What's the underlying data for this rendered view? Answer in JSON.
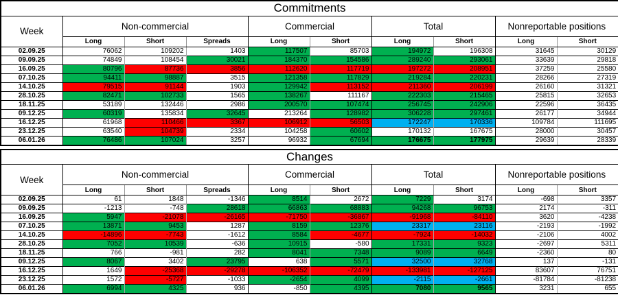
{
  "colors": {
    "gain_green": "#00b050",
    "loss_red": "#ff0000",
    "highlight_blue": "#00b0f0",
    "background": "#ffffff"
  },
  "chart_data": [
    {
      "type": "table",
      "title": "Commitments",
      "week_label": "Week",
      "groups": [
        {
          "label": "Non-commercial",
          "columns": [
            "Long",
            "Short",
            "Spreads"
          ]
        },
        {
          "label": "Commercial",
          "columns": [
            "Long",
            "Short"
          ]
        },
        {
          "label": "Total",
          "columns": [
            "Long",
            "Short"
          ]
        },
        {
          "label": "Nonreportable positions",
          "columns": [
            "Long",
            "Short"
          ]
        }
      ],
      "rows": [
        {
          "week": "02.09.25",
          "cells": [
            [
              "76062",
              "w"
            ],
            [
              "109202",
              "w"
            ],
            [
              "1403",
              "w"
            ],
            [
              "117507",
              "g"
            ],
            [
              "85703",
              "w"
            ],
            [
              "194972",
              "g"
            ],
            [
              "196308",
              "w"
            ],
            [
              "31645",
              "w"
            ],
            [
              "30129",
              "w"
            ]
          ]
        },
        {
          "week": "09.09.25",
          "cells": [
            [
              "74849",
              "w"
            ],
            [
              "108454",
              "w"
            ],
            [
              "30021",
              "g"
            ],
            [
              "184370",
              "g"
            ],
            [
              "154586",
              "g"
            ],
            [
              "289240",
              "g"
            ],
            [
              "293061",
              "g"
            ],
            [
              "33639",
              "w"
            ],
            [
              "29818",
              "w"
            ]
          ]
        },
        {
          "week": "16.09.25",
          "cells": [
            [
              "80796",
              "g"
            ],
            [
              "87736",
              "r"
            ],
            [
              "3856",
              "r"
            ],
            [
              "112620",
              "r"
            ],
            [
              "117719",
              "r"
            ],
            [
              "197272",
              "r"
            ],
            [
              "208951",
              "r"
            ],
            [
              "37259",
              "w"
            ],
            [
              "25580",
              "w"
            ]
          ]
        },
        {
          "week": "07.10.25",
          "cells": [
            [
              "94411",
              "g"
            ],
            [
              "98887",
              "g"
            ],
            [
              "3515",
              "w"
            ],
            [
              "121358",
              "g"
            ],
            [
              "117829",
              "g"
            ],
            [
              "219284",
              "g"
            ],
            [
              "220231",
              "g"
            ],
            [
              "28266",
              "w"
            ],
            [
              "27319",
              "w"
            ]
          ]
        },
        {
          "week": "14.10.25",
          "cells": [
            [
              "79515",
              "r"
            ],
            [
              "91144",
              "r"
            ],
            [
              "1903",
              "w"
            ],
            [
              "129942",
              "g"
            ],
            [
              "113152",
              "r"
            ],
            [
              "211360",
              "r"
            ],
            [
              "206199",
              "r"
            ],
            [
              "26160",
              "w"
            ],
            [
              "31321",
              "w"
            ]
          ]
        },
        {
          "week": "28.10.25",
          "cells": [
            [
              "82471",
              "g"
            ],
            [
              "102733",
              "g"
            ],
            [
              "1565",
              "w"
            ],
            [
              "138267",
              "g"
            ],
            [
              "111167",
              "w"
            ],
            [
              "222303",
              "g"
            ],
            [
              "215465",
              "g"
            ],
            [
              "25815",
              "w"
            ],
            [
              "32653",
              "w"
            ]
          ]
        },
        {
          "week": "18.11.25",
          "cells": [
            [
              "53189",
              "w"
            ],
            [
              "132446",
              "w"
            ],
            [
              "2986",
              "w"
            ],
            [
              "200570",
              "g"
            ],
            [
              "107474",
              "g"
            ],
            [
              "256745",
              "g"
            ],
            [
              "242906",
              "g"
            ],
            [
              "22596",
              "w"
            ],
            [
              "36435",
              "w"
            ]
          ]
        },
        {
          "week": "09.12.25",
          "cells": [
            [
              "60319",
              "g"
            ],
            [
              "135834",
              "w"
            ],
            [
              "32645",
              "g"
            ],
            [
              "213264",
              "w"
            ],
            [
              "128982",
              "g"
            ],
            [
              "306228",
              "g"
            ],
            [
              "297461",
              "g"
            ],
            [
              "26177",
              "w"
            ],
            [
              "34944",
              "w"
            ]
          ]
        },
        {
          "week": "16.12.25",
          "cells": [
            [
              "61968",
              "w"
            ],
            [
              "110466",
              "r"
            ],
            [
              "3367",
              "r"
            ],
            [
              "106912",
              "r"
            ],
            [
              "56503",
              "r"
            ],
            [
              "172247",
              "b"
            ],
            [
              "170336",
              "b"
            ],
            [
              "109784",
              "w"
            ],
            [
              "111695",
              "w"
            ]
          ]
        },
        {
          "week": "23.12.25",
          "cells": [
            [
              "63540",
              "w"
            ],
            [
              "104739",
              "r"
            ],
            [
              "2334",
              "w"
            ],
            [
              "104258",
              "w"
            ],
            [
              "60602",
              "g"
            ],
            [
              "170132",
              "w"
            ],
            [
              "167675",
              "w"
            ],
            [
              "28000",
              "w"
            ],
            [
              "30457",
              "w"
            ]
          ]
        },
        {
          "week": "06.01.26",
          "cells": [
            [
              "76486",
              "g"
            ],
            [
              "107024",
              "g"
            ],
            [
              "3257",
              "w"
            ],
            [
              "96932",
              "w"
            ],
            [
              "67694",
              "g"
            ],
            [
              "176675",
              "g",
              "bold"
            ],
            [
              "177975",
              "g",
              "bold"
            ],
            [
              "29639",
              "w"
            ],
            [
              "28339",
              "w"
            ]
          ]
        }
      ]
    },
    {
      "type": "table",
      "title": "Changes",
      "week_label": "Week",
      "groups": [
        {
          "label": "Non-commercial",
          "columns": [
            "Long",
            "Short",
            "Spreads"
          ]
        },
        {
          "label": "Commercial",
          "columns": [
            "Long",
            "Short"
          ]
        },
        {
          "label": "Total",
          "columns": [
            "Long",
            "Short"
          ]
        },
        {
          "label": "Nonreportable positions",
          "columns": [
            "Long",
            "Short"
          ]
        }
      ],
      "rows": [
        {
          "week": "02.09.25",
          "cells": [
            [
              "61",
              "w"
            ],
            [
              "1848",
              "w"
            ],
            [
              "-1346",
              "w"
            ],
            [
              "8514",
              "g"
            ],
            [
              "2672",
              "w"
            ],
            [
              "7229",
              "g"
            ],
            [
              "3174",
              "w"
            ],
            [
              "-698",
              "w"
            ],
            [
              "3357",
              "w"
            ]
          ]
        },
        {
          "week": "09.09.25",
          "cells": [
            [
              "-1213",
              "w"
            ],
            [
              "-748",
              "w"
            ],
            [
              "28618",
              "g"
            ],
            [
              "66863",
              "g"
            ],
            [
              "68883",
              "g"
            ],
            [
              "94268",
              "g"
            ],
            [
              "96753",
              "g"
            ],
            [
              "2174",
              "w"
            ],
            [
              "-311",
              "w"
            ]
          ]
        },
        {
          "week": "16.09.25",
          "cells": [
            [
              "5947",
              "g"
            ],
            [
              "-21078",
              "r"
            ],
            [
              "-26165",
              "r"
            ],
            [
              "-71750",
              "r"
            ],
            [
              "-36867",
              "r"
            ],
            [
              "-91968",
              "r"
            ],
            [
              "-84110",
              "r"
            ],
            [
              "3620",
              "w"
            ],
            [
              "-4238",
              "w"
            ]
          ]
        },
        {
          "week": "07.10.25",
          "cells": [
            [
              "13871",
              "g"
            ],
            [
              "9453",
              "g"
            ],
            [
              "1287",
              "w"
            ],
            [
              "8159",
              "g"
            ],
            [
              "12376",
              "g"
            ],
            [
              "23317",
              "b"
            ],
            [
              "23116",
              "b"
            ],
            [
              "-2193",
              "w"
            ],
            [
              "-1992",
              "w"
            ]
          ]
        },
        {
          "week": "14.10.25",
          "cells": [
            [
              "-14896",
              "r"
            ],
            [
              "-7743",
              "r"
            ],
            [
              "-1612",
              "w"
            ],
            [
              "8584",
              "g"
            ],
            [
              "-4677",
              "r"
            ],
            [
              "-7924",
              "r"
            ],
            [
              "-14032",
              "r"
            ],
            [
              "-2106",
              "w"
            ],
            [
              "4002",
              "w"
            ]
          ]
        },
        {
          "week": "28.10.25",
          "cells": [
            [
              "7052",
              "g"
            ],
            [
              "10539",
              "g"
            ],
            [
              "-636",
              "w"
            ],
            [
              "10915",
              "g"
            ],
            [
              "-580",
              "w"
            ],
            [
              "17331",
              "g"
            ],
            [
              "9323",
              "g"
            ],
            [
              "-2697",
              "w"
            ],
            [
              "5311",
              "w"
            ]
          ]
        },
        {
          "week": "18.11.25",
          "cells": [
            [
              "766",
              "w"
            ],
            [
              "-981",
              "w"
            ],
            [
              "282",
              "w"
            ],
            [
              "8041",
              "g"
            ],
            [
              "7348",
              "g"
            ],
            [
              "9089",
              "g"
            ],
            [
              "6649",
              "g"
            ],
            [
              "-2360",
              "w"
            ],
            [
              "80",
              "w"
            ]
          ]
        },
        {
          "week": "09.12.25",
          "cells": [
            [
              "8067",
              "g"
            ],
            [
              "3402",
              "w"
            ],
            [
              "23795",
              "g"
            ],
            [
              "638",
              "w"
            ],
            [
              "5571",
              "g"
            ],
            [
              "32500",
              "b"
            ],
            [
              "32768",
              "b"
            ],
            [
              "137",
              "w"
            ],
            [
              "-131",
              "w"
            ]
          ]
        },
        {
          "week": "16.12.25",
          "cells": [
            [
              "1649",
              "w"
            ],
            [
              "-25368",
              "r"
            ],
            [
              "-29278",
              "r"
            ],
            [
              "-106352",
              "r"
            ],
            [
              "-72479",
              "r"
            ],
            [
              "-133981",
              "r"
            ],
            [
              "-127125",
              "r"
            ],
            [
              "83607",
              "w"
            ],
            [
              "76751",
              "w"
            ]
          ]
        },
        {
          "week": "23.12.25",
          "cells": [
            [
              "1572",
              "w"
            ],
            [
              "-5727",
              "r"
            ],
            [
              "-1033",
              "w"
            ],
            [
              "-2654",
              "g"
            ],
            [
              "4099",
              "g"
            ],
            [
              "-2115",
              "b"
            ],
            [
              "-2661",
              "b"
            ],
            [
              "-81784",
              "w"
            ],
            [
              "-81238",
              "w"
            ]
          ]
        },
        {
          "week": "06.01.26",
          "cells": [
            [
              "6994",
              "g"
            ],
            [
              "4325",
              "g"
            ],
            [
              "936",
              "w"
            ],
            [
              "-850",
              "w"
            ],
            [
              "4395",
              "g"
            ],
            [
              "7080",
              "g",
              "bold"
            ],
            [
              "9565",
              "g",
              "bold"
            ],
            [
              "3231",
              "w"
            ],
            [
              "655",
              "w"
            ]
          ]
        }
      ]
    }
  ]
}
